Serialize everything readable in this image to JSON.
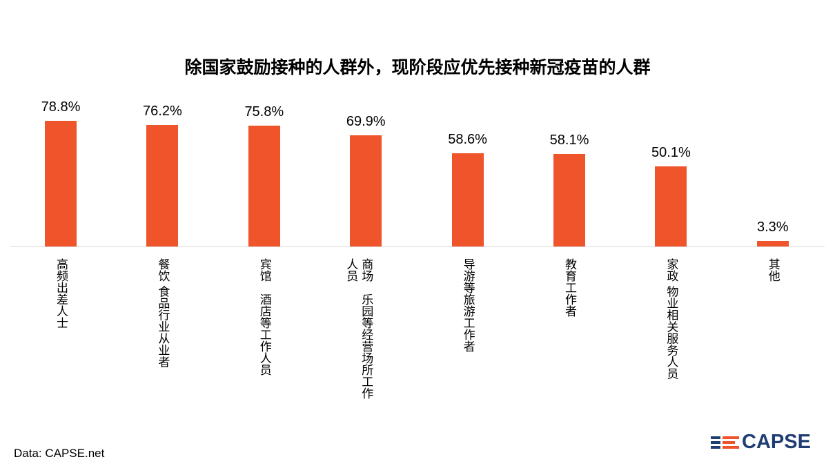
{
  "source": "Data: CAPSE.net",
  "logo_text": "CAPSE",
  "colors": {
    "bar": "#f0542a",
    "logo_navy": "#1f3d73",
    "logo_orange": "#f0542a"
  },
  "chart_data": {
    "type": "bar",
    "title": "除国家鼓励接种的人群外，现阶段应优先接种新冠疫苗的人群",
    "categories": [
      "高频出差人士",
      "餐饮 食品行业从业者",
      "宾馆　酒店等工作人员",
      "商场　乐园等经营场所工作人员",
      "导游等旅游工作者",
      "教育工作者",
      "家政 物业相关服务人员",
      "其他"
    ],
    "values": [
      78.8,
      76.2,
      75.8,
      69.9,
      58.6,
      58.1,
      50.1,
      3.3
    ],
    "labels": [
      "78.8%",
      "76.2%",
      "75.8%",
      "69.9%",
      "58.6%",
      "58.1%",
      "50.1%",
      "3.3%"
    ],
    "xlabel": "",
    "ylabel": "",
    "ylim": [
      0,
      100
    ],
    "grid": false,
    "legend": "none"
  }
}
